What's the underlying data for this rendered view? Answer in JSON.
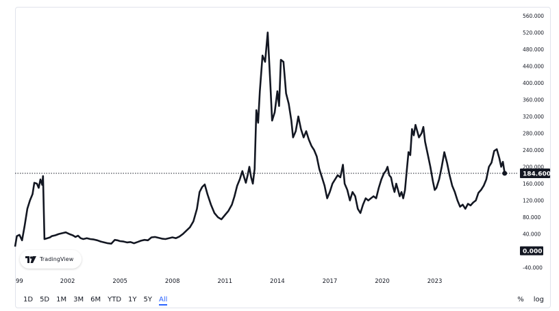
{
  "chart_data": {
    "type": "line",
    "series": [
      {
        "color": "#131722",
        "points": [
          [
            1999.0,
            10
          ],
          [
            1999.1,
            35
          ],
          [
            1999.25,
            38
          ],
          [
            1999.4,
            25
          ],
          [
            1999.55,
            60
          ],
          [
            1999.7,
            100
          ],
          [
            1999.85,
            120
          ],
          [
            2000.0,
            135
          ],
          [
            2000.1,
            162
          ],
          [
            2000.25,
            160
          ],
          [
            2000.35,
            150
          ],
          [
            2000.45,
            170
          ],
          [
            2000.55,
            157
          ],
          [
            2000.6,
            178
          ],
          [
            2000.68,
            28
          ],
          [
            2000.85,
            30
          ],
          [
            2001.0,
            32
          ],
          [
            2001.1,
            35
          ],
          [
            2001.3,
            37
          ],
          [
            2001.5,
            40
          ],
          [
            2001.7,
            42
          ],
          [
            2001.9,
            44
          ],
          [
            2002.1,
            40
          ],
          [
            2002.3,
            37
          ],
          [
            2002.45,
            33
          ],
          [
            2002.6,
            36
          ],
          [
            2002.75,
            30
          ],
          [
            2002.9,
            28
          ],
          [
            2003.1,
            30
          ],
          [
            2003.3,
            28
          ],
          [
            2003.5,
            27
          ],
          [
            2003.7,
            25
          ],
          [
            2003.9,
            22
          ],
          [
            2004.1,
            20
          ],
          [
            2004.3,
            18
          ],
          [
            2004.5,
            17
          ],
          [
            2004.7,
            26
          ],
          [
            2004.85,
            25
          ],
          [
            2005.0,
            23
          ],
          [
            2005.2,
            22
          ],
          [
            2005.4,
            20
          ],
          [
            2005.6,
            21
          ],
          [
            2005.8,
            18
          ],
          [
            2006.0,
            21
          ],
          [
            2006.2,
            24
          ],
          [
            2006.4,
            26
          ],
          [
            2006.6,
            25
          ],
          [
            2006.8,
            32
          ],
          [
            2007.0,
            33
          ],
          [
            2007.2,
            31
          ],
          [
            2007.4,
            29
          ],
          [
            2007.6,
            28
          ],
          [
            2007.8,
            30
          ],
          [
            2008.0,
            32
          ],
          [
            2008.2,
            30
          ],
          [
            2008.4,
            34
          ],
          [
            2008.6,
            40
          ],
          [
            2008.8,
            48
          ],
          [
            2009.0,
            56
          ],
          [
            2009.2,
            70
          ],
          [
            2009.4,
            100
          ],
          [
            2009.55,
            140
          ],
          [
            2009.7,
            152
          ],
          [
            2009.85,
            158
          ],
          [
            2010.0,
            135
          ],
          [
            2010.2,
            110
          ],
          [
            2010.4,
            90
          ],
          [
            2010.6,
            80
          ],
          [
            2010.8,
            75
          ],
          [
            2011.0,
            85
          ],
          [
            2011.2,
            95
          ],
          [
            2011.4,
            110
          ],
          [
            2011.55,
            130
          ],
          [
            2011.7,
            155
          ],
          [
            2011.85,
            170
          ],
          [
            2012.0,
            190
          ],
          [
            2012.1,
            175
          ],
          [
            2012.2,
            162
          ],
          [
            2012.3,
            180
          ],
          [
            2012.4,
            200
          ],
          [
            2012.5,
            175
          ],
          [
            2012.6,
            160
          ],
          [
            2012.7,
            195
          ],
          [
            2012.8,
            335
          ],
          [
            2012.9,
            305
          ],
          [
            2013.0,
            380
          ],
          [
            2013.15,
            465
          ],
          [
            2013.3,
            450
          ],
          [
            2013.45,
            520
          ],
          [
            2013.6,
            395
          ],
          [
            2013.7,
            310
          ],
          [
            2013.85,
            330
          ],
          [
            2014.0,
            380
          ],
          [
            2014.1,
            345
          ],
          [
            2014.2,
            455
          ],
          [
            2014.35,
            450
          ],
          [
            2014.5,
            375
          ],
          [
            2014.65,
            350
          ],
          [
            2014.8,
            310
          ],
          [
            2014.9,
            270
          ],
          [
            2015.05,
            285
          ],
          [
            2015.2,
            320
          ],
          [
            2015.35,
            290
          ],
          [
            2015.5,
            270
          ],
          [
            2015.65,
            285
          ],
          [
            2015.8,
            265
          ],
          [
            2015.95,
            250
          ],
          [
            2016.1,
            240
          ],
          [
            2016.25,
            225
          ],
          [
            2016.4,
            195
          ],
          [
            2016.55,
            175
          ],
          [
            2016.7,
            155
          ],
          [
            2016.85,
            125
          ],
          [
            2017.0,
            140
          ],
          [
            2017.15,
            160
          ],
          [
            2017.3,
            170
          ],
          [
            2017.45,
            180
          ],
          [
            2017.6,
            175
          ],
          [
            2017.75,
            205
          ],
          [
            2017.85,
            160
          ],
          [
            2018.0,
            145
          ],
          [
            2018.15,
            120
          ],
          [
            2018.3,
            140
          ],
          [
            2018.45,
            130
          ],
          [
            2018.6,
            100
          ],
          [
            2018.75,
            90
          ],
          [
            2018.9,
            110
          ],
          [
            2019.05,
            125
          ],
          [
            2019.2,
            120
          ],
          [
            2019.35,
            125
          ],
          [
            2019.5,
            130
          ],
          [
            2019.65,
            125
          ],
          [
            2019.8,
            150
          ],
          [
            2019.95,
            170
          ],
          [
            2020.1,
            185
          ],
          [
            2020.2,
            190
          ],
          [
            2020.3,
            200
          ],
          [
            2020.4,
            180
          ],
          [
            2020.5,
            175
          ],
          [
            2020.6,
            155
          ],
          [
            2020.7,
            140
          ],
          [
            2020.8,
            160
          ],
          [
            2020.9,
            145
          ],
          [
            2021.0,
            130
          ],
          [
            2021.1,
            140
          ],
          [
            2021.2,
            125
          ],
          [
            2021.3,
            145
          ],
          [
            2021.4,
            190
          ],
          [
            2021.5,
            235
          ],
          [
            2021.6,
            228
          ],
          [
            2021.7,
            290
          ],
          [
            2021.8,
            275
          ],
          [
            2021.9,
            300
          ],
          [
            2022.0,
            285
          ],
          [
            2022.1,
            270
          ],
          [
            2022.25,
            280
          ],
          [
            2022.35,
            295
          ],
          [
            2022.45,
            260
          ],
          [
            2022.6,
            230
          ],
          [
            2022.75,
            200
          ],
          [
            2022.9,
            165
          ],
          [
            2023.0,
            145
          ],
          [
            2023.1,
            150
          ],
          [
            2023.25,
            170
          ],
          [
            2023.4,
            200
          ],
          [
            2023.55,
            235
          ],
          [
            2023.7,
            210
          ],
          [
            2023.85,
            180
          ],
          [
            2024.0,
            155
          ],
          [
            2024.15,
            140
          ],
          [
            2024.3,
            120
          ],
          [
            2024.45,
            105
          ],
          [
            2024.6,
            110
          ],
          [
            2024.75,
            100
          ],
          [
            2024.9,
            112
          ],
          [
            2025.05,
            108
          ],
          [
            2025.2,
            115
          ],
          [
            2025.35,
            120
          ],
          [
            2025.5,
            138
          ],
          [
            2025.65,
            145
          ],
          [
            2025.8,
            155
          ],
          [
            2025.95,
            170
          ],
          [
            2026.1,
            200
          ],
          [
            2026.25,
            210
          ],
          [
            2026.4,
            238
          ],
          [
            2026.55,
            242
          ],
          [
            2026.7,
            220
          ],
          [
            2026.8,
            200
          ],
          [
            2026.9,
            212
          ],
          [
            2027.0,
            185
          ]
        ]
      }
    ],
    "y_ticks": [
      "560.000",
      "520.000",
      "480.000",
      "440.000",
      "400.000",
      "360.000",
      "320.000",
      "280.000",
      "240.000",
      "200.000",
      "160.000",
      "120.000",
      "80.000",
      "40.000",
      "0.000",
      "-40.000"
    ],
    "y_tick_values": [
      560,
      520,
      480,
      440,
      400,
      360,
      320,
      280,
      240,
      200,
      160,
      120,
      80,
      40,
      0,
      -40
    ],
    "ylim": [
      -52,
      568
    ],
    "x_ticks": [
      "99",
      "2002",
      "2005",
      "2008",
      "2011",
      "2014",
      "2017",
      "2020",
      "2023"
    ],
    "x_tick_positions": [
      1999.0,
      2002.0,
      2005.0,
      2008.0,
      2011.0,
      2014.0,
      2017.0,
      2020.0,
      2023.0
    ],
    "xlim": [
      1999.0,
      2027.6
    ],
    "last_price": 184.6,
    "last_price_label": "184.600",
    "zero_label": "0.000",
    "grid": false,
    "line_color": "#131722"
  },
  "watermark": {
    "text": "TradingView"
  },
  "range_buttons": [
    "1D",
    "5D",
    "1M",
    "3M",
    "6M",
    "YTD",
    "1Y",
    "5Y",
    "All"
  ],
  "active_range": "All",
  "tools": {
    "percent": "%",
    "log": "log"
  }
}
